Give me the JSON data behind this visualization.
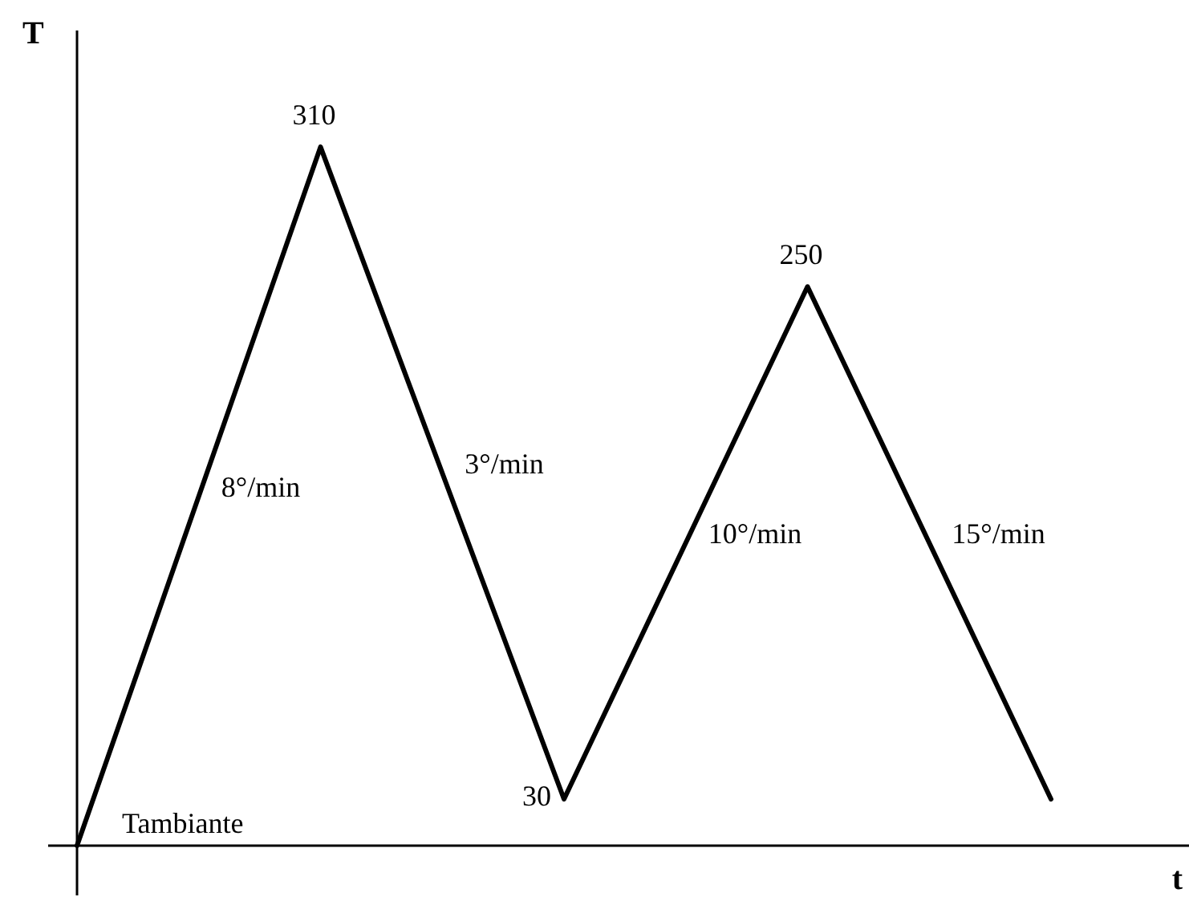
{
  "chart_data": {
    "type": "line",
    "xlabel": "t",
    "ylabel": "T",
    "categories": [
      null,
      null,
      null,
      null,
      null
    ],
    "values": [
      10,
      310,
      30,
      250,
      30
    ],
    "color": "#000000",
    "ylim": [
      10,
      360
    ],
    "value_labels": [
      "Tambiante",
      "310",
      "30",
      "250",
      null
    ],
    "annotations": [
      "8°/min",
      "3°/min",
      "10°/min",
      "15°/min"
    ]
  }
}
